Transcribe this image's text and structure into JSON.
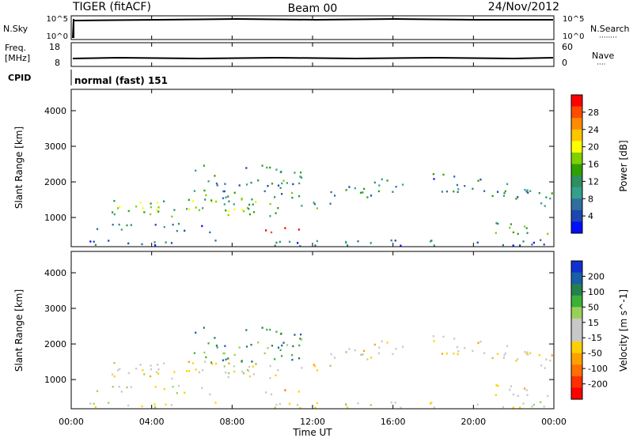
{
  "header": {
    "radar": "TIGER (fitACF)",
    "beam": "Beam 00",
    "date": "24/Nov/2012"
  },
  "time_axis": {
    "ticks": [
      "00:00",
      "04:00",
      "08:00",
      "12:00",
      "16:00",
      "20:00",
      "00:00"
    ],
    "label": "Time UT"
  },
  "noise_panel": {
    "left_label": "N.Sky",
    "right_label": "N.Search",
    "left_ticks": [
      "10^5",
      "10^0"
    ],
    "right_ticks": [
      "10^5",
      "10^0"
    ]
  },
  "freq_panel": {
    "left_label_line1": "Freq.",
    "left_label_line2": "[MHz]",
    "right_label": "Nave",
    "left_ticks": [
      "18",
      "8"
    ],
    "right_ticks": [
      "60",
      "0"
    ]
  },
  "cpid_panel": {
    "label": "CPID",
    "mode_text": "normal (fast) 151"
  },
  "range_axis": {
    "label": "Slant Range [km]",
    "ticks": [
      "4000",
      "3000",
      "2000",
      "1000"
    ]
  },
  "power_colorbar": {
    "title": "Power [dB]",
    "tick_labels": [
      "28",
      "24",
      "20",
      "16",
      "12",
      "8",
      "4"
    ],
    "colors": [
      "#ff0000",
      "#ff4a00",
      "#ff8c00",
      "#ffc400",
      "#ffff00",
      "#7fd000",
      "#30a000",
      "#2f8f5f",
      "#34a08a",
      "#2f6f9f",
      "#1e46b0",
      "#0010ff"
    ]
  },
  "velocity_colorbar": {
    "title": "Velocity [m s^-1]",
    "tick_labels": [
      "200",
      "100",
      "50",
      "15",
      "-15",
      "-50",
      "-100",
      "-200"
    ],
    "colors": [
      "#1030d0",
      "#1a5ea8",
      "#23804f",
      "#3cb037",
      "#9ad05a",
      "#c8c8c8",
      "#c8c8c8",
      "#ffd000",
      "#ffa000",
      "#ff7000",
      "#ff3000",
      "#ff0000"
    ]
  },
  "chart_data": {
    "type": "heatmap",
    "title": "TIGER (fitACF)",
    "subtitle": "Beam 00  24/Nov/2012",
    "xlabel": "Time UT",
    "ylabel": "Slant Range [km]",
    "xlim_hours": [
      0,
      24
    ],
    "ylim_km": [
      180,
      4600
    ],
    "grid": false,
    "panels": [
      "Power [dB]",
      "Velocity [m s^-1]"
    ],
    "power_range_db": [
      0,
      30
    ],
    "velocity_range": [
      -200,
      200
    ],
    "frequency_mhz_approx": 10,
    "scatter_regions": [
      {
        "name": "main F-region band",
        "hours": [
          1,
          12.5
        ],
        "range_km": [
          1050,
          1550
        ],
        "power_db": 14,
        "velocity": -15
      },
      {
        "name": "near-range echoes",
        "hours": [
          1,
          7
        ],
        "range_km": [
          600,
          850
        ],
        "power_db": 8,
        "velocity": 0
      },
      {
        "name": "strong patch",
        "hours": [
          9.5,
          11.7
        ],
        "range_km": [
          600,
          800
        ],
        "power_db": 28,
        "velocity": -60
      },
      {
        "name": "disturbed region",
        "hours": [
          6,
          11.5
        ],
        "range_km": [
          1500,
          2500
        ],
        "power_db": 10,
        "velocity": 100
      },
      {
        "name": "arc band",
        "hours": [
          12,
          24
        ],
        "range_km": [
          1500,
          2000
        ],
        "power_db": 8,
        "velocity": -15
      },
      {
        "name": "late near-range",
        "hours": [
          21,
          24
        ],
        "range_km": [
          500,
          900
        ],
        "power_db": 16,
        "velocity": -30
      },
      {
        "name": "ground scatter floor",
        "hours": [
          0,
          24
        ],
        "range_km": [
          180,
          400
        ],
        "power_db": 6,
        "velocity": 0
      }
    ]
  }
}
